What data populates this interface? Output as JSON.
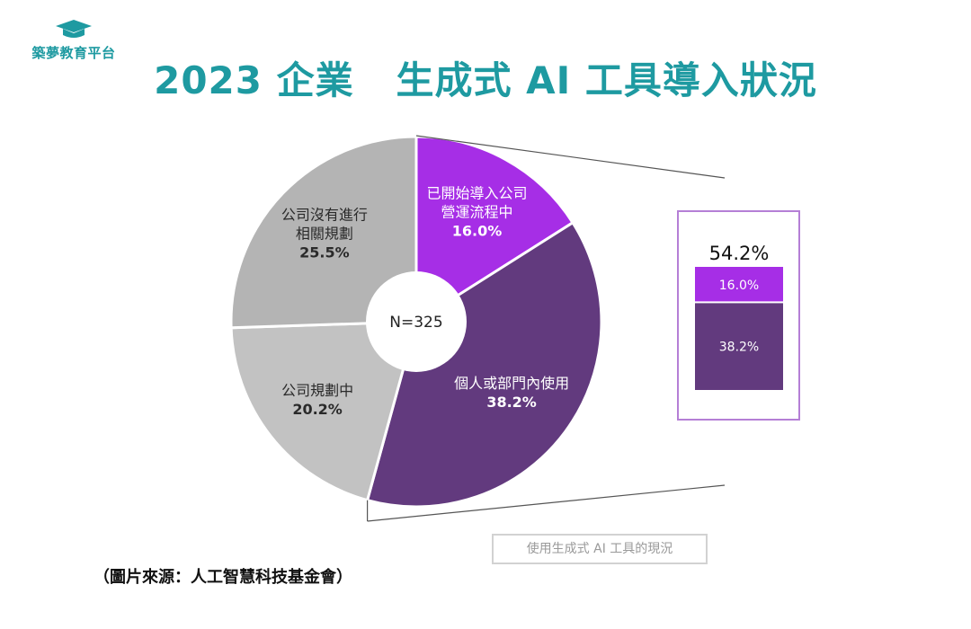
{
  "brand": {
    "name": "築夢教育平台",
    "logo_icon": "graduation-cap-icon",
    "color": "#1e9aa1"
  },
  "title": "2023 企業   生成式 AI 工具導入狀況",
  "chart_data": {
    "type": "pie",
    "center_label": "N=325",
    "slices": [
      {
        "lines": [
          "已開始導入公司",
          "營運流程中"
        ],
        "value": 16.0,
        "value_label": "16.0%",
        "color": "#a62ee6"
      },
      {
        "lines": [
          "個人或部門內使用"
        ],
        "value": 38.2,
        "value_label": "38.2%",
        "color": "#623a7e"
      },
      {
        "lines": [
          "公司規劃中"
        ],
        "value": 20.2,
        "value_label": "20.2%",
        "color": "#c2c2c2"
      },
      {
        "lines": [
          "公司沒有進行",
          "相關規劃"
        ],
        "value": 25.5,
        "value_label": "25.5%",
        "color": "#b4b4b4"
      }
    ],
    "breakdown": {
      "total_label": "54.2%",
      "segments": [
        {
          "value": 16.0,
          "label": "16.0%",
          "color": "#a62ee6"
        },
        {
          "value": 38.2,
          "label": "38.2%",
          "color": "#623a7e"
        }
      ],
      "caption": "使用生成式 AI 工具的現況"
    }
  },
  "source": "（圖片來源：人工智慧科技基金會）"
}
